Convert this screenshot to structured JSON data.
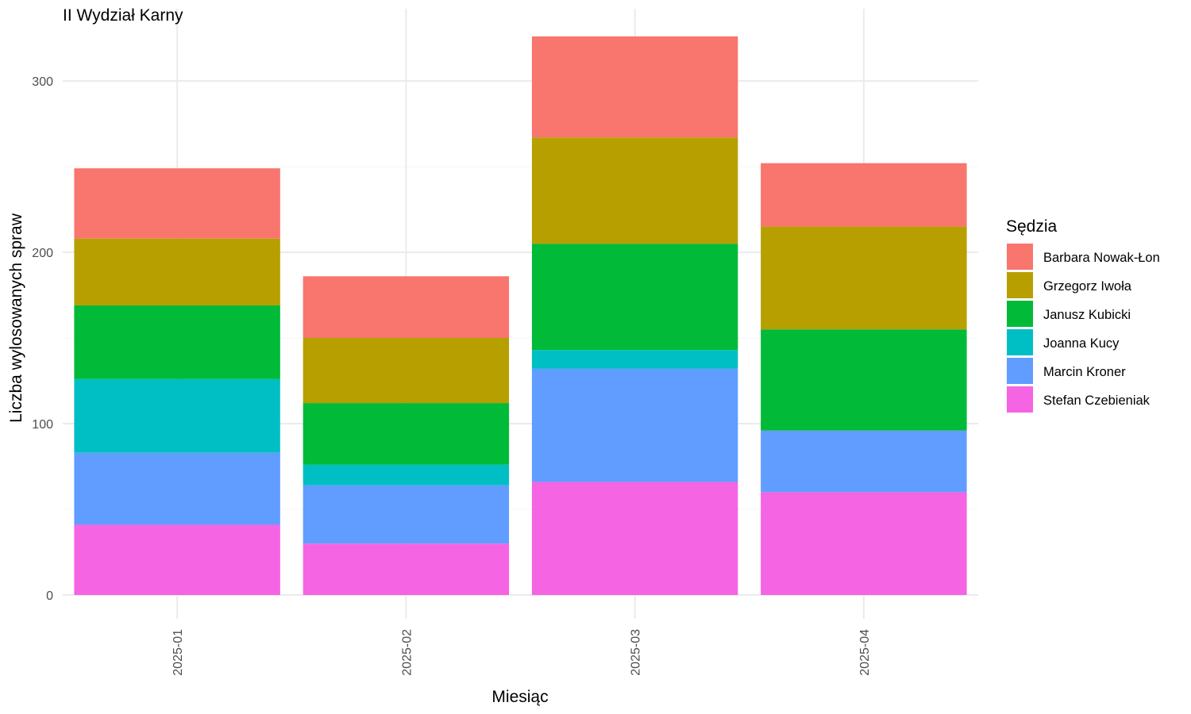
{
  "chart_data": {
    "type": "bar",
    "stacked": true,
    "title": "II Wydział Karny",
    "xlabel": "Miesiąc",
    "ylabel": "Liczba wylosowanych spraw",
    "categories": [
      "2025-01",
      "2025-02",
      "2025-03",
      "2025-04"
    ],
    "ylim": [
      0,
      330
    ],
    "yticks": [
      0,
      100,
      200,
      300
    ],
    "grid": true,
    "legend": {
      "title": "Sędzia",
      "placement": "right"
    },
    "series": [
      {
        "name": "Stefan Czebieniak",
        "color": "#F564E3",
        "values": [
          41,
          30,
          66,
          60
        ]
      },
      {
        "name": "Marcin Kroner",
        "color": "#619CFF",
        "values": [
          42,
          34,
          66,
          36
        ]
      },
      {
        "name": "Joanna Kucy",
        "color": "#00BFC4",
        "values": [
          43,
          12,
          11,
          0
        ]
      },
      {
        "name": "Janusz Kubicki",
        "color": "#00BA38",
        "values": [
          43,
          36,
          62,
          59
        ]
      },
      {
        "name": "Grzegorz Iwoła",
        "color": "#B79F00",
        "values": [
          39,
          38,
          62,
          60
        ]
      },
      {
        "name": "Barbara Nowak-Łon",
        "color": "#F8766D",
        "values": [
          41,
          36,
          59,
          37
        ]
      }
    ],
    "legend_order": [
      "Barbara Nowak-Łon",
      "Grzegorz Iwoła",
      "Janusz Kubicki",
      "Joanna Kucy",
      "Marcin Kroner",
      "Stefan Czebieniak"
    ]
  }
}
